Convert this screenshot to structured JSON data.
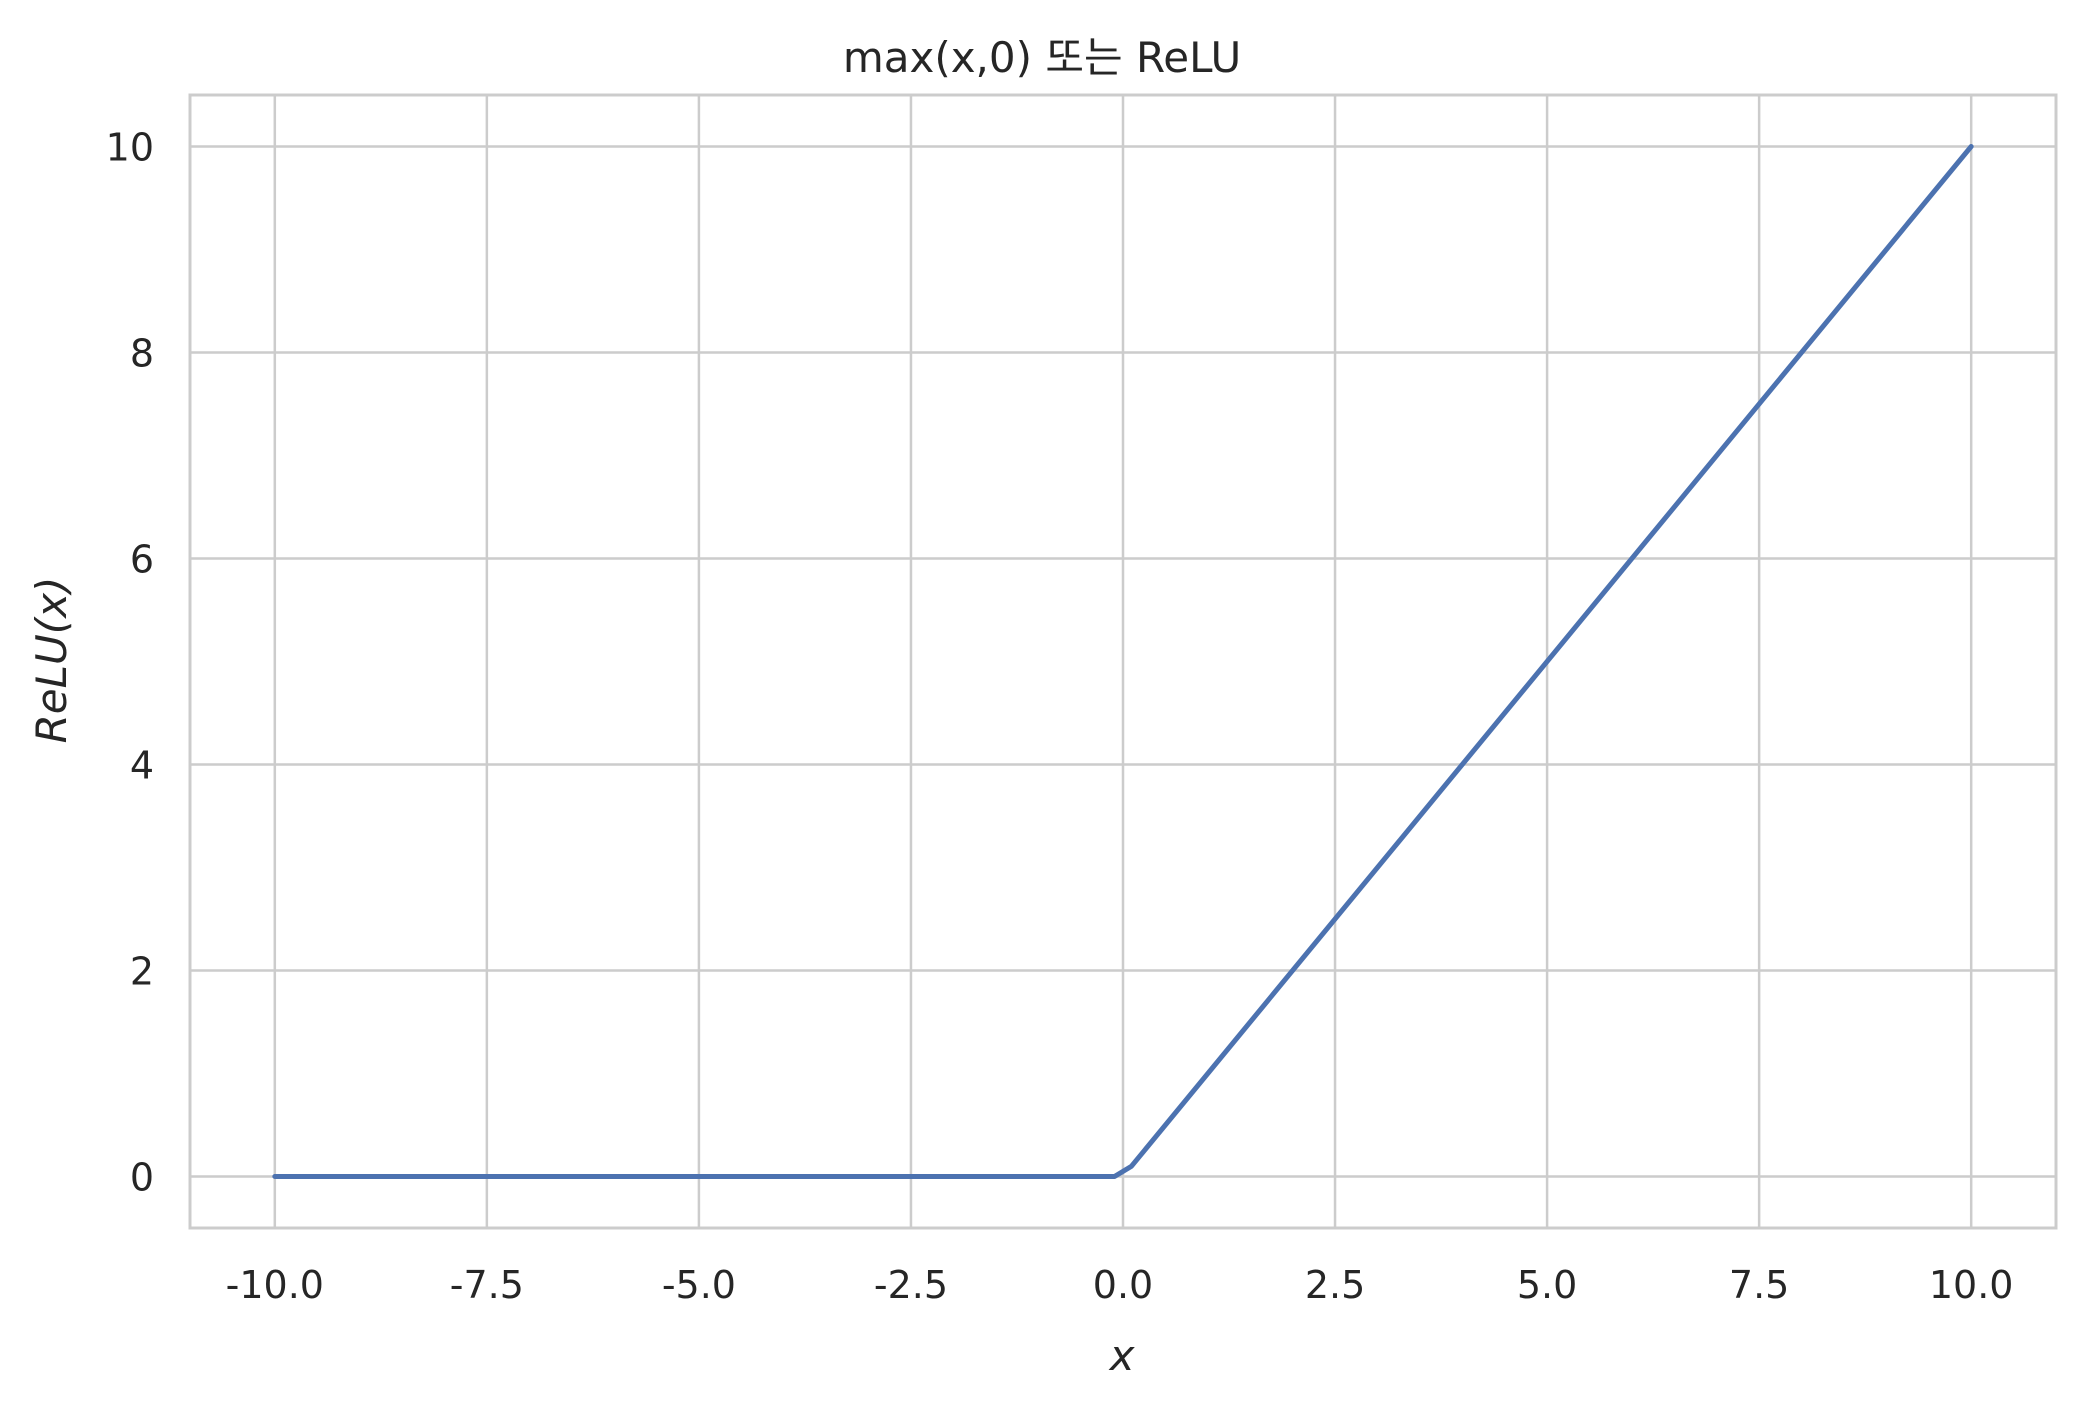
{
  "chart_data": {
    "type": "line",
    "title": "max(x,0) 또는 ReLU",
    "xlabel": "x",
    "ylabel": "ReLU(x)",
    "xlim": [
      -11.0,
      11.0
    ],
    "ylim": [
      -0.5,
      10.5
    ],
    "xticks": [
      -10.0,
      -7.5,
      -5.0,
      -2.5,
      0.0,
      2.5,
      5.0,
      7.5,
      10.0
    ],
    "xtick_labels": [
      "-10.0",
      "-7.5",
      "-5.0",
      "-2.5",
      "0.0",
      "2.5",
      "5.0",
      "7.5",
      "10.0"
    ],
    "yticks": [
      0,
      2,
      4,
      6,
      8,
      10
    ],
    "ytick_labels": [
      "0",
      "2",
      "4",
      "6",
      "8",
      "10"
    ],
    "grid": true,
    "series": [
      {
        "color": "#4c72b0",
        "x": [
          -10.0,
          -0.1,
          0.1,
          10.0
        ],
        "y": [
          0.0,
          0.0,
          0.1,
          10.0
        ]
      }
    ],
    "colors": {
      "line": "#4c72b0",
      "grid": "#cccccc",
      "frame": "#cccccc",
      "text": "#262626"
    }
  }
}
